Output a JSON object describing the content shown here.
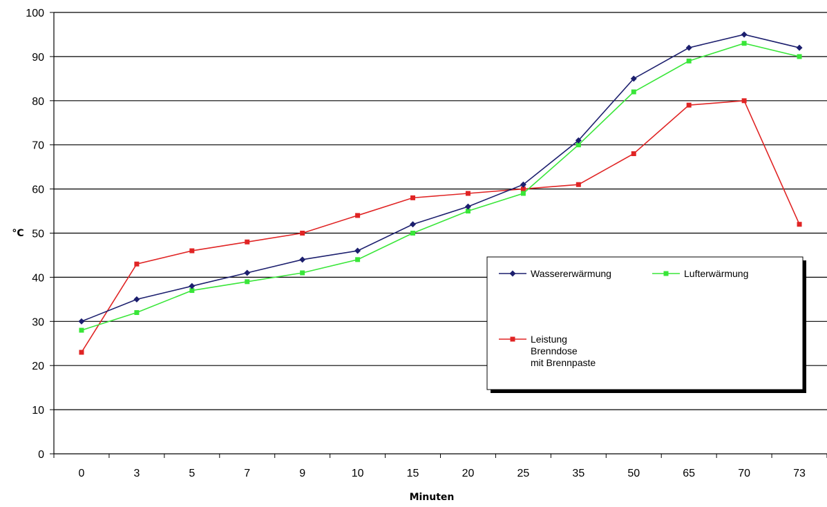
{
  "chart_data": {
    "type": "line",
    "xlabel": "Minuten",
    "ylabel": "°C",
    "categories": [
      "0",
      "3",
      "5",
      "7",
      "9",
      "10",
      "15",
      "20",
      "25",
      "35",
      "50",
      "65",
      "70",
      "73"
    ],
    "ylim": [
      0,
      100
    ],
    "y_ticks": [
      0,
      10,
      20,
      30,
      40,
      50,
      60,
      70,
      80,
      90,
      100
    ],
    "grid": "horizontal",
    "legend_position": "right",
    "series": [
      {
        "name": "Wassererwärmung",
        "color": "#1c1f6e",
        "marker": "diamond",
        "values": [
          30,
          35,
          38,
          41,
          44,
          46,
          52,
          56,
          61,
          71,
          85,
          92,
          95,
          92
        ]
      },
      {
        "name": "Lufterwärmung",
        "color": "#39e639",
        "marker": "square",
        "values": [
          28,
          32,
          37,
          39,
          41,
          44,
          50,
          55,
          59,
          70,
          82,
          89,
          93,
          90
        ]
      },
      {
        "name": "Leistung\nBrenndose\nmit Brennpaste",
        "color": "#e02424",
        "marker": "square",
        "values": [
          23,
          43,
          46,
          48,
          50,
          54,
          58,
          59,
          60,
          61,
          68,
          79,
          80,
          52
        ]
      }
    ]
  }
}
